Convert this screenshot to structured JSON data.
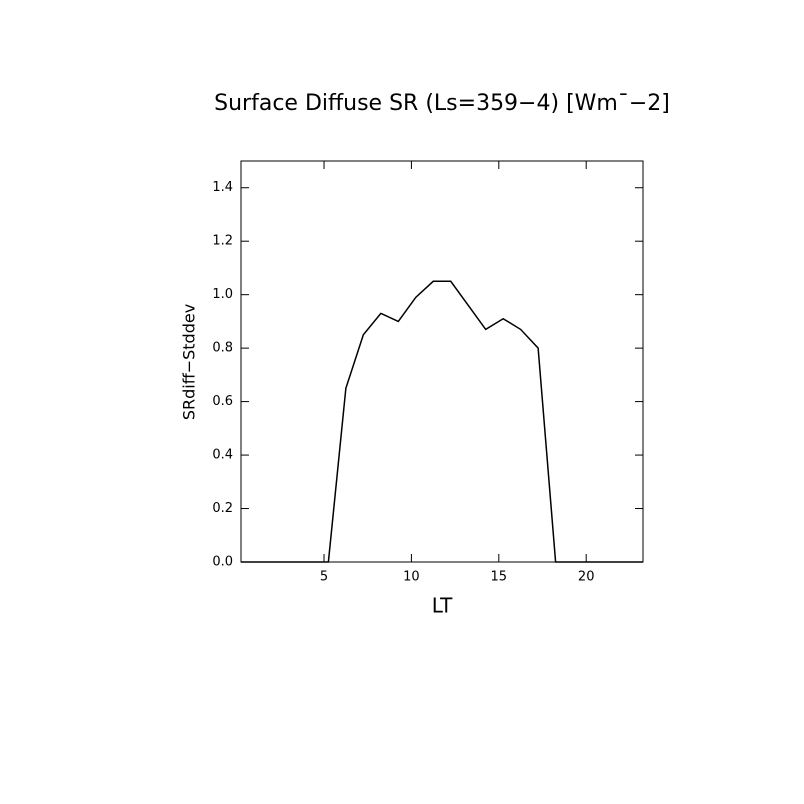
{
  "chart_data": {
    "type": "line",
    "title": "Surface Diffuse SR (Ls=359−4) [Wm¯−2]",
    "x_label": "LT",
    "y_label": "SRdiff−Stddev",
    "x": [
      0.25,
      1.25,
      2.25,
      3.25,
      4.25,
      5.25,
      6.25,
      7.25,
      8.25,
      9.25,
      10.25,
      11.25,
      12.25,
      13.25,
      14.25,
      15.25,
      16.25,
      17.25,
      18.25,
      19.25,
      20.25,
      21.25,
      22.25,
      23.25
    ],
    "series": [
      {
        "name": "SRdiff−Stddev",
        "color": "#000000",
        "values": [
          0,
          0,
          0,
          0,
          0,
          0,
          0.65,
          0.85,
          0.93,
          0.9,
          0.99,
          1.05,
          1.05,
          0.96,
          0.87,
          0.91,
          0.87,
          0.8,
          0,
          0,
          0,
          0,
          0,
          0
        ]
      }
    ],
    "xlim": [
      0.25,
      23.25
    ],
    "xticks": [
      5,
      10,
      15,
      20
    ],
    "ylim": [
      0,
      1.5
    ],
    "yticks": [
      {
        "value": 0,
        "label": "0.0"
      },
      0.2,
      0.4,
      0.6,
      0.8,
      {
        "value": 1,
        "label": "1.0"
      },
      1.2,
      1.4
    ],
    "grid": false
  }
}
